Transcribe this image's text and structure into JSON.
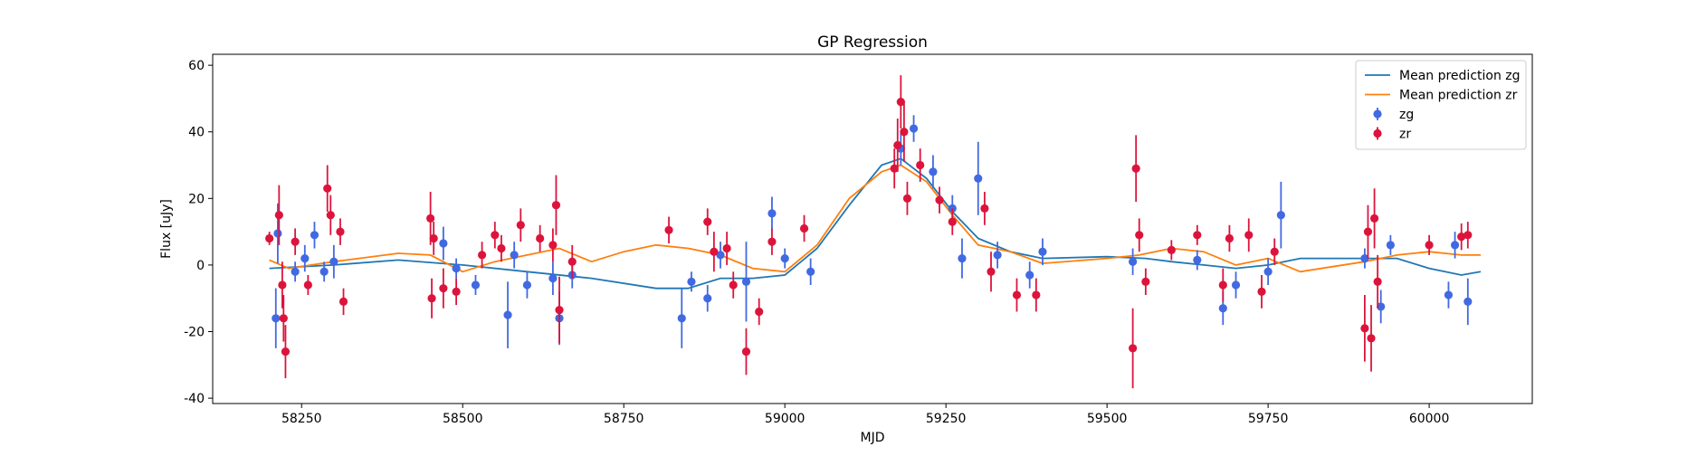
{
  "chart_data": {
    "type": "errorbar-line",
    "title": "GP Regression",
    "x_label": "MJD",
    "y_label": "Flux [uJy]",
    "xlim": [
      58112,
      60160
    ],
    "ylim": [
      -41.6,
      63.3
    ],
    "xticks": [
      58250,
      58500,
      58750,
      59000,
      59250,
      59500,
      59750,
      60000
    ],
    "yticks": [
      -40,
      -20,
      0,
      20,
      40,
      60
    ],
    "legend": "upper right",
    "series": [
      {
        "name": "Mean prediction zg",
        "kind": "line",
        "color": "#1f77b4",
        "x": [
          58200,
          58300,
          58400,
          58500,
          58600,
          58700,
          58800,
          58850,
          58900,
          58950,
          59000,
          59050,
          59100,
          59150,
          59180,
          59220,
          59260,
          59300,
          59350,
          59400,
          59500,
          59560,
          59600,
          59650,
          59700,
          59750,
          59800,
          59900,
          59950,
          60000,
          60050,
          60080
        ],
        "values": [
          -1,
          0,
          1.5,
          0,
          -2,
          -4,
          -7,
          -7,
          -4,
          -4,
          -3,
          5,
          18,
          30,
          32,
          26,
          16,
          8,
          4,
          2,
          2.5,
          2,
          1,
          0,
          -1,
          0,
          2,
          2,
          2,
          -1,
          -3,
          -2
        ]
      },
      {
        "name": "Mean prediction zr",
        "kind": "line",
        "color": "#ff7f0e",
        "x": [
          58200,
          58230,
          58300,
          58400,
          58450,
          58500,
          58550,
          58600,
          58650,
          58700,
          58750,
          58800,
          58850,
          58900,
          58950,
          59000,
          59050,
          59100,
          59150,
          59180,
          59220,
          59260,
          59300,
          59350,
          59400,
          59500,
          59550,
          59600,
          59650,
          59700,
          59750,
          59800,
          59900,
          59950,
          60000,
          60050,
          60080
        ],
        "values": [
          1.5,
          -1,
          1,
          3.5,
          3,
          -2,
          1,
          3,
          5,
          1,
          4,
          6,
          5,
          3,
          -1,
          -2,
          6,
          20,
          28,
          30,
          25,
          15,
          6,
          4,
          0.5,
          2,
          3,
          5,
          4,
          0,
          2,
          -2,
          1,
          3,
          4,
          3,
          3
        ]
      },
      {
        "name": "zg",
        "kind": "errorbar",
        "color": "#4169e1",
        "x": [
          58210,
          58213,
          58240,
          58255,
          58270,
          58285,
          58300,
          58470,
          58490,
          58520,
          58570,
          58580,
          58600,
          58640,
          58650,
          58670,
          58840,
          58855,
          58880,
          58900,
          58940,
          58980,
          59000,
          59040,
          59180,
          59200,
          59230,
          59260,
          59275,
          59300,
          59330,
          59380,
          59400,
          59540,
          59640,
          59680,
          59700,
          59750,
          59770,
          59900,
          59925,
          59940,
          60030,
          60040,
          60060
        ],
        "values": [
          -16,
          9.5,
          -2,
          2,
          9,
          -2,
          1,
          6.5,
          -1,
          -6,
          -15,
          3,
          -6,
          -4,
          -16,
          -3,
          -16,
          -5,
          -10,
          3,
          -5,
          15.5,
          2,
          -2,
          35,
          41,
          28,
          17,
          2,
          26,
          3,
          -3,
          4,
          1,
          1.5,
          -13,
          -6,
          -2,
          15,
          2,
          -12.5,
          6,
          -9,
          6,
          -11
        ],
        "errors": [
          9,
          9,
          3,
          4,
          4,
          3,
          5,
          5,
          3,
          3,
          10,
          4,
          4,
          5,
          8,
          4,
          9,
          3,
          4,
          4,
          12,
          5,
          3,
          4,
          5,
          4,
          5,
          4,
          6,
          11,
          4,
          4,
          4,
          4,
          3,
          5,
          4,
          4,
          10,
          3,
          5,
          3,
          4,
          4,
          7
        ]
      },
      {
        "name": "zr",
        "kind": "errorbar",
        "color": "#dc143c",
        "x": [
          58200,
          58215,
          58220,
          58225,
          58222,
          58240,
          58260,
          58290,
          58295,
          58310,
          58315,
          58450,
          58452,
          58455,
          58470,
          58490,
          58530,
          58550,
          58560,
          58590,
          58620,
          58640,
          58645,
          58650,
          58670,
          58820,
          58880,
          58890,
          58910,
          58920,
          58940,
          58960,
          58980,
          59030,
          59170,
          59175,
          59180,
          59185,
          59190,
          59210,
          59240,
          59260,
          59310,
          59320,
          59360,
          59390,
          59540,
          59545,
          59550,
          59560,
          59600,
          59640,
          59680,
          59690,
          59720,
          59740,
          59760,
          59900,
          59905,
          59910,
          59915,
          59920,
          60000,
          60050,
          60060
        ],
        "values": [
          8,
          15,
          -6,
          -26,
          -16,
          7,
          -6,
          23,
          15,
          10,
          -11,
          14,
          -10,
          8,
          -7,
          -8,
          3,
          9,
          5,
          12,
          8,
          6,
          18,
          -13.5,
          1,
          10.5,
          13,
          4,
          5,
          -6,
          -26,
          -14,
          7,
          11,
          29,
          36,
          49,
          40,
          20,
          30,
          19.5,
          13,
          17,
          -2,
          -9,
          -9,
          -25,
          29,
          9,
          -5,
          4.5,
          9,
          -6,
          8,
          9,
          -8,
          4,
          -19,
          10,
          -22,
          14,
          -5,
          6,
          8.5,
          9
        ],
        "errors": [
          2,
          9,
          7,
          8,
          7,
          4,
          3,
          7,
          6,
          4,
          4,
          8,
          6,
          5,
          6,
          4,
          4,
          4,
          4,
          5,
          4,
          5,
          9,
          10,
          5,
          4,
          4,
          6,
          5,
          4,
          7,
          4,
          4,
          4,
          6,
          8,
          8,
          9,
          5,
          5,
          4,
          4,
          5,
          6,
          5,
          5,
          12,
          10,
          5,
          4,
          3,
          3,
          5,
          4,
          5,
          5,
          4,
          10,
          8,
          10,
          9,
          8,
          3,
          4,
          4
        ]
      }
    ]
  }
}
